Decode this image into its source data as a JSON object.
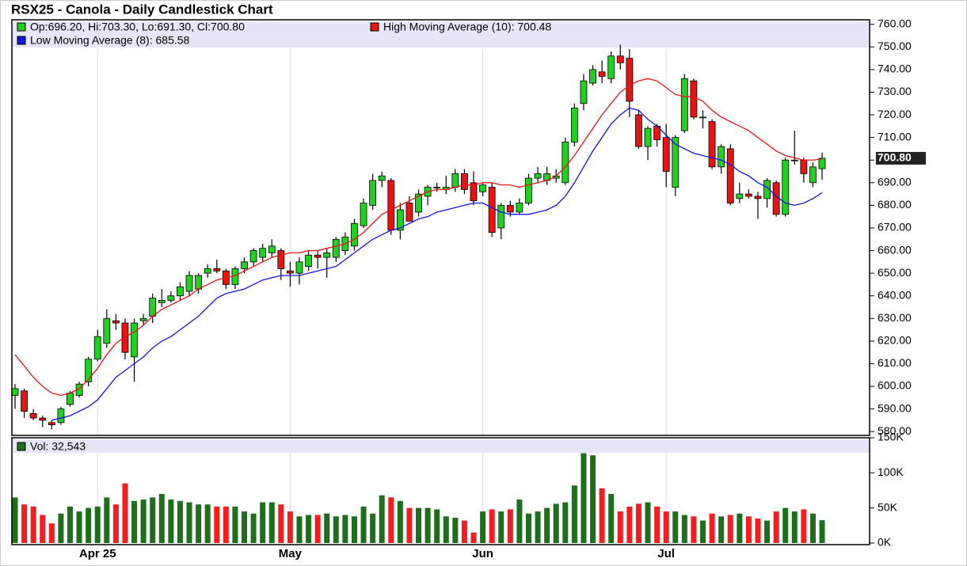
{
  "chart_data": [
    {
      "type": "candlestick",
      "title": "RSX25 - Canola - Daily Candlestick Chart",
      "legend_text": "Op:696.20, Hi:703.30, Lo:691.30, Cl:700.80",
      "last_label": "700.80",
      "up_color": "#22d022",
      "down_color": "#e81414",
      "categories": [
        null,
        null,
        null,
        null,
        null,
        null,
        null,
        null,
        null,
        "Apr 25",
        null,
        null,
        null,
        null,
        null,
        null,
        null,
        null,
        null,
        null,
        null,
        null,
        null,
        null,
        null,
        null,
        null,
        null,
        null,
        null,
        "May",
        null,
        null,
        null,
        null,
        null,
        null,
        null,
        null,
        null,
        null,
        null,
        null,
        null,
        null,
        null,
        null,
        null,
        null,
        null,
        null,
        "Jun",
        null,
        null,
        null,
        null,
        null,
        null,
        null,
        null,
        null,
        null,
        null,
        null,
        null,
        null,
        null,
        null,
        null,
        null,
        null,
        "Jul",
        null,
        null,
        null,
        null,
        null,
        null,
        null,
        null,
        null,
        null,
        null,
        null,
        null,
        null,
        null,
        null,
        null
      ],
      "open": [
        596,
        598,
        588,
        586,
        584,
        584,
        592,
        596,
        602,
        612,
        619,
        629,
        628,
        613,
        629,
        631,
        637,
        638,
        640,
        642,
        643,
        650,
        652,
        651,
        645,
        652,
        655,
        657,
        659,
        660,
        651,
        650,
        653,
        658,
        657,
        657,
        660,
        662,
        671,
        680,
        691,
        691,
        669,
        681,
        677,
        684,
        688,
        687,
        688,
        694,
        690,
        686,
        688,
        670,
        680,
        677,
        681,
        692,
        691,
        692,
        690,
        708,
        725,
        734,
        739,
        736,
        746,
        745,
        720,
        706,
        715,
        710,
        688,
        713,
        735,
        719,
        717,
        697,
        705,
        683,
        685,
        684,
        683,
        690,
        676,
        700,
        700,
        690,
        696.2
      ],
      "high": [
        601,
        599,
        590,
        587,
        585,
        591,
        598,
        602,
        613,
        625,
        634,
        632,
        630,
        630,
        632,
        641,
        643,
        642,
        646,
        651,
        650,
        654,
        656,
        652,
        653,
        657,
        661,
        663,
        665,
        661,
        655,
        657,
        660,
        660,
        661,
        666,
        668,
        674,
        683,
        694,
        695,
        692,
        681,
        684,
        687,
        689,
        690,
        693,
        696,
        696,
        695,
        690,
        690,
        681,
        682,
        683,
        694,
        697,
        697,
        696,
        710,
        725,
        738,
        742,
        744,
        748,
        751,
        749,
        722,
        715,
        716,
        716,
        711,
        738,
        736,
        722,
        718,
        707,
        707,
        690,
        687,
        686,
        692,
        691,
        701,
        713,
        701,
        699,
        703.3
      ],
      "low": [
        590,
        586,
        585,
        582,
        581,
        583,
        591,
        595,
        600,
        611,
        617,
        625,
        612,
        602,
        627,
        628,
        635,
        637,
        638,
        640,
        641,
        648,
        650,
        643,
        643,
        650,
        653,
        655,
        657,
        647,
        644,
        645,
        651,
        652,
        648,
        655,
        658,
        660,
        670,
        678,
        688,
        667,
        665,
        673,
        675,
        680,
        686,
        685,
        686,
        685,
        680,
        684,
        666,
        665,
        675,
        676,
        680,
        690,
        689,
        690,
        689,
        706,
        722,
        733,
        734,
        734,
        740,
        719,
        705,
        700,
        706,
        688,
        684,
        712,
        718,
        714,
        696,
        694,
        680,
        681,
        683,
        674,
        679,
        675,
        675,
        698,
        690,
        688,
        691.3
      ],
      "close": [
        599,
        589,
        586,
        585,
        583,
        590,
        597,
        601,
        612,
        622,
        630,
        628,
        615,
        628,
        630,
        639,
        638,
        640,
        644,
        649,
        649,
        652,
        651,
        645,
        652,
        655,
        660,
        661,
        662,
        652,
        650,
        655,
        658,
        657,
        659,
        665,
        666,
        672,
        681,
        691,
        693,
        669,
        678,
        673,
        685,
        688,
        688,
        688,
        694,
        687,
        682,
        689,
        668,
        680,
        677,
        681,
        692,
        694,
        694,
        693,
        708,
        723,
        735,
        740,
        737,
        746,
        743,
        726,
        706,
        714,
        709,
        695,
        710,
        736,
        719,
        719,
        697,
        706,
        681,
        685,
        684,
        683,
        691,
        676,
        700,
        700,
        694,
        697,
        700.8
      ],
      "ylim": [
        578.5,
        762
      ],
      "yticks": [
        {
          "value": 580,
          "label": "580.00"
        },
        {
          "value": 590,
          "label": "590.00"
        },
        {
          "value": 600,
          "label": "600.00"
        },
        {
          "value": 610,
          "label": "610.00"
        },
        {
          "value": 620,
          "label": "620.00"
        },
        {
          "value": 630,
          "label": "630.00"
        },
        {
          "value": 640,
          "label": "640.00"
        },
        {
          "value": 650,
          "label": "650.00"
        },
        {
          "value": 660,
          "label": "660.00"
        },
        {
          "value": 670,
          "label": "670.00"
        },
        {
          "value": 680,
          "label": "680.00"
        },
        {
          "value": 690,
          "label": "690.00"
        },
        {
          "value": 700,
          "label": "700.00"
        },
        {
          "value": 710,
          "label": "710.00"
        },
        {
          "value": 720,
          "label": "720.00"
        },
        {
          "value": 730,
          "label": "730.00"
        },
        {
          "value": 740,
          "label": "740.00"
        },
        {
          "value": 750,
          "label": "750.00"
        },
        {
          "value": 760,
          "label": "760.00"
        }
      ],
      "series": [
        {
          "name": "High Moving Average (10): 700.48",
          "color": "#e81414",
          "values": [
            614,
            609,
            604,
            600,
            597,
            596,
            597,
            599,
            603,
            608,
            614,
            619,
            622,
            624,
            627,
            631,
            634,
            636,
            638,
            640,
            643,
            645,
            647,
            648,
            649,
            651,
            653,
            655,
            657,
            658,
            659,
            659,
            660,
            660,
            661,
            662,
            663,
            665,
            668,
            672,
            676,
            678,
            680,
            682,
            684,
            686,
            687,
            687,
            688,
            689,
            689,
            690,
            690,
            689,
            689,
            688,
            689,
            690,
            691,
            693,
            697,
            702,
            708,
            714,
            720,
            725,
            730,
            733,
            735,
            736,
            735,
            732,
            729,
            728,
            728,
            726,
            722,
            719,
            717,
            715,
            713,
            710,
            707,
            704,
            702,
            701,
            700,
            700,
            700.48
          ]
        },
        {
          "name": "Low Moving Average (8): 685.58",
          "color": "#1414e0",
          "values": [
            null,
            null,
            null,
            null,
            585,
            586,
            587,
            589,
            591,
            594,
            599,
            604,
            607,
            610,
            613,
            617,
            620,
            622,
            625,
            628,
            631,
            635,
            639,
            641,
            642,
            643,
            645,
            647,
            648,
            649,
            649,
            649,
            650,
            651,
            652,
            653,
            656,
            659,
            662,
            665,
            667,
            669,
            670,
            672,
            674,
            675,
            677,
            678,
            679,
            680,
            681,
            681,
            679,
            677,
            676,
            676,
            676,
            677,
            678,
            680,
            684,
            690,
            697,
            704,
            710,
            716,
            720,
            723,
            722,
            718,
            715,
            711,
            707,
            705,
            703,
            702,
            701,
            700,
            698,
            695,
            693,
            690,
            688,
            684,
            681,
            680,
            681,
            683,
            685.58
          ]
        }
      ]
    },
    {
      "type": "bar",
      "legend_text": "Vol: 32,543",
      "color": "#1e6e1e",
      "down_color": "#f01e1e",
      "values": [
        65000,
        55000,
        52000,
        40000,
        28000,
        42000,
        52000,
        45000,
        50000,
        52000,
        65000,
        55000,
        85000,
        60000,
        62000,
        65000,
        70000,
        62000,
        60000,
        58000,
        55000,
        55000,
        52000,
        52000,
        52000,
        45000,
        42000,
        58000,
        58000,
        55000,
        45000,
        38000,
        40000,
        40000,
        42000,
        38000,
        40000,
        38000,
        52000,
        42000,
        68000,
        65000,
        60000,
        50000,
        50000,
        50000,
        48000,
        38000,
        36000,
        32000,
        15000,
        45000,
        48000,
        45000,
        48000,
        62000,
        42000,
        45000,
        50000,
        56000,
        58000,
        82000,
        128000,
        125000,
        78000,
        70000,
        45000,
        52000,
        56000,
        58000,
        52000,
        45000,
        45000,
        40000,
        38000,
        32000,
        42000,
        38000,
        40000,
        42000,
        38000,
        35000,
        32000,
        45000,
        50000,
        45000,
        48000,
        42000,
        32543
      ],
      "ylim": [
        0,
        150000
      ],
      "yticks": [
        {
          "value": 0,
          "label": "0K"
        },
        {
          "value": 50000,
          "label": "50K"
        },
        {
          "value": 100000,
          "label": "100K"
        },
        {
          "value": 150000,
          "label": "150K"
        }
      ]
    }
  ]
}
